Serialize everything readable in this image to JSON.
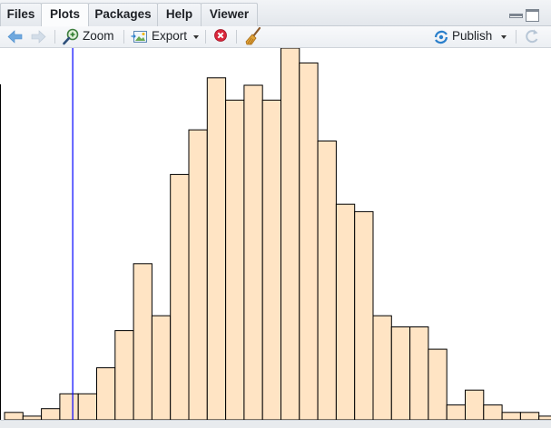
{
  "tabs": [
    {
      "label": "Files",
      "active": false
    },
    {
      "label": "Plots",
      "active": true
    },
    {
      "label": "Packages",
      "active": false
    },
    {
      "label": "Help",
      "active": false
    },
    {
      "label": "Viewer",
      "active": false
    }
  ],
  "toolbar": {
    "back_icon": "arrow-left-icon",
    "forward_icon": "arrow-right-icon",
    "zoom_label": "Zoom",
    "export_label": "Export",
    "remove_icon": "remove-plot-icon",
    "clear_icon": "broom-icon",
    "publish_label": "Publish",
    "refresh_icon": "refresh-icon"
  },
  "colors": {
    "bar_fill": "#ffe4c4",
    "bar_stroke": "#000000",
    "vline": "#0000ff",
    "accent": "#2a7fcb"
  },
  "chart_data": {
    "type": "bar",
    "bins": 30,
    "counts": [
      2,
      1,
      3,
      7,
      7,
      14,
      24,
      42,
      28,
      66,
      78,
      92,
      86,
      90,
      86,
      100,
      96,
      75,
      58,
      56,
      28,
      25,
      25,
      19,
      4,
      8,
      4,
      2,
      2,
      1
    ],
    "vline_bin_position": 3.7,
    "ylim": [
      0,
      100
    ],
    "title": "",
    "xlabel": "",
    "ylabel": ""
  }
}
